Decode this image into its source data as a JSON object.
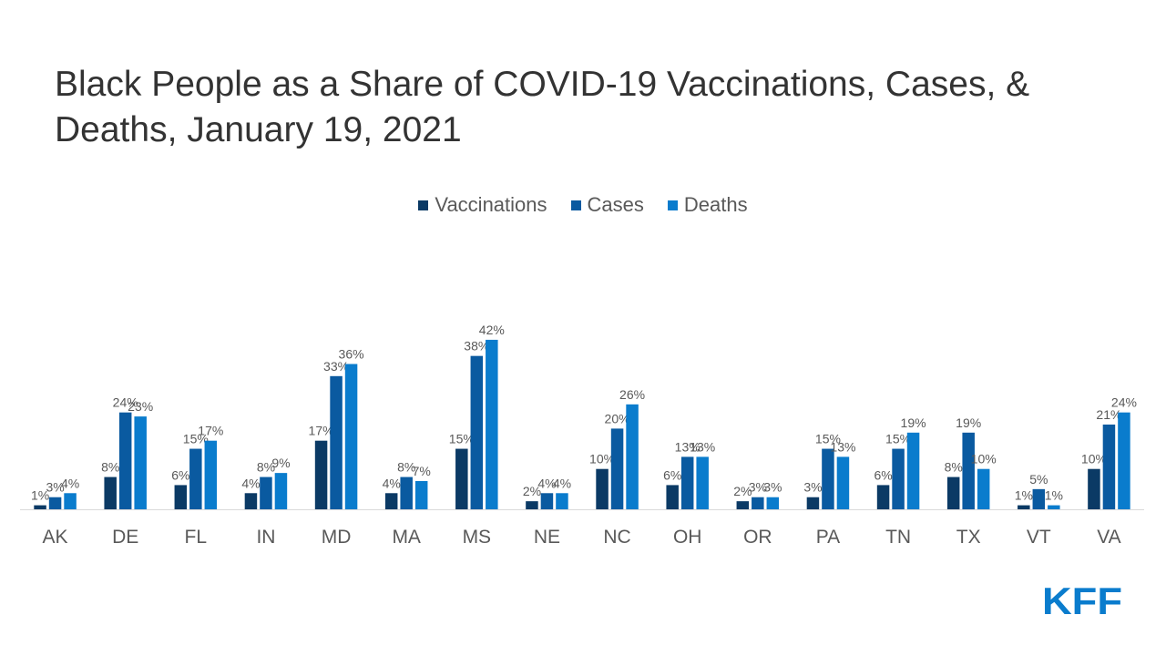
{
  "title": "Black People as a Share of COVID-19 Vaccinations, Cases, & Deaths, January 19, 2021",
  "logo_text": "KFF",
  "colors": {
    "vaccinations": "#0b3a65",
    "cases": "#0a5aa0",
    "deaths": "#0a7ccd",
    "axis": "#d9d9d9",
    "label": "#595959",
    "logo": "#0a7ccd"
  },
  "chart_data": {
    "type": "bar",
    "title": "Black People as a Share of COVID-19 Vaccinations, Cases, & Deaths, January 19, 2021",
    "categories": [
      "AK",
      "DE",
      "FL",
      "IN",
      "MD",
      "MA",
      "MS",
      "NE",
      "NC",
      "OH",
      "OR",
      "PA",
      "TN",
      "TX",
      "VT",
      "VA"
    ],
    "series": [
      {
        "name": "Vaccinations",
        "values": [
          1,
          8,
          6,
          4,
          17,
          4,
          15,
          2,
          10,
          6,
          2,
          3,
          6,
          8,
          1,
          10
        ]
      },
      {
        "name": "Cases",
        "values": [
          3,
          24,
          15,
          8,
          33,
          8,
          38,
          4,
          20,
          13,
          3,
          15,
          15,
          19,
          5,
          21
        ]
      },
      {
        "name": "Deaths",
        "values": [
          4,
          23,
          17,
          9,
          36,
          7,
          42,
          4,
          26,
          13,
          3,
          13,
          19,
          10,
          1,
          24
        ]
      }
    ],
    "value_format": "percent",
    "legend": "top-center",
    "grid": false
  }
}
